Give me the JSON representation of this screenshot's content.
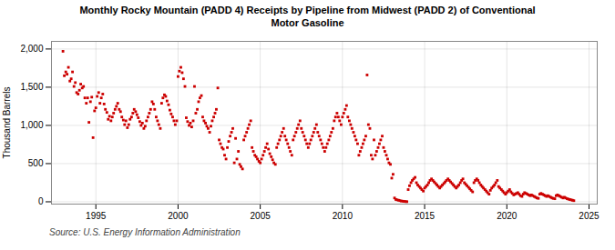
{
  "chart_data": {
    "type": "scatter",
    "title": "Monthly Rocky Mountain (PADD 4) Receipts by Pipeline from Midwest (PADD 2) of Conventional\nMotor Gasoline",
    "ylabel": "Thousand Barrels",
    "source": "Source: U.S. Energy Information Administration",
    "color": "#cc0000",
    "marker": "square",
    "grid": true,
    "xlim": [
      1992.3,
      2025.5
    ],
    "ylim": [
      -30,
      2100
    ],
    "xticks": [
      1995,
      2000,
      2005,
      2010,
      2015,
      2020,
      2025
    ],
    "yticks": [
      0,
      500,
      {
        "value": 1000,
        "label": "1,000"
      },
      {
        "value": 1500,
        "label": "1,500"
      },
      {
        "value": 2000,
        "label": "2,000"
      }
    ],
    "x": [
      1993,
      1993.08,
      1993.17,
      1993.25,
      1993.33,
      1993.42,
      1993.5,
      1993.58,
      1993.67,
      1993.75,
      1993.83,
      1993.92,
      1994,
      1994.08,
      1994.17,
      1994.25,
      1994.33,
      1994.42,
      1994.5,
      1994.58,
      1994.67,
      1994.75,
      1994.83,
      1994.92,
      1995,
      1995.08,
      1995.17,
      1995.25,
      1995.33,
      1995.42,
      1995.5,
      1995.58,
      1995.67,
      1995.75,
      1995.83,
      1995.92,
      1996,
      1996.08,
      1996.17,
      1996.25,
      1996.33,
      1996.42,
      1996.5,
      1996.58,
      1996.67,
      1996.75,
      1996.83,
      1996.92,
      1997,
      1997.08,
      1997.17,
      1997.25,
      1997.33,
      1997.42,
      1997.5,
      1997.58,
      1997.67,
      1997.75,
      1997.83,
      1997.92,
      1998,
      1998.08,
      1998.17,
      1998.25,
      1998.33,
      1998.42,
      1998.5,
      1998.58,
      1998.67,
      1998.75,
      1998.83,
      1998.92,
      1999,
      1999.08,
      1999.17,
      1999.25,
      1999.33,
      1999.42,
      1999.5,
      1999.58,
      1999.67,
      1999.75,
      1999.83,
      1999.92,
      2000,
      2000.08,
      2000.17,
      2000.25,
      2000.33,
      2000.42,
      2000.5,
      2000.58,
      2000.67,
      2000.75,
      2000.83,
      2000.92,
      2001,
      2001.08,
      2001.17,
      2001.25,
      2001.33,
      2001.42,
      2001.5,
      2001.58,
      2001.67,
      2001.75,
      2001.83,
      2001.92,
      2002,
      2002.08,
      2002.17,
      2002.25,
      2002.33,
      2002.42,
      2002.5,
      2002.58,
      2002.67,
      2002.75,
      2002.83,
      2002.92,
      2003,
      2003.08,
      2003.17,
      2003.25,
      2003.33,
      2003.42,
      2003.5,
      2003.58,
      2003.67,
      2003.75,
      2003.83,
      2003.92,
      2004,
      2004.08,
      2004.17,
      2004.25,
      2004.33,
      2004.42,
      2004.5,
      2004.58,
      2004.67,
      2004.75,
      2004.83,
      2004.92,
      2005,
      2005.08,
      2005.17,
      2005.25,
      2005.33,
      2005.42,
      2005.5,
      2005.58,
      2005.67,
      2005.75,
      2005.83,
      2005.92,
      2006,
      2006.08,
      2006.17,
      2006.25,
      2006.33,
      2006.42,
      2006.5,
      2006.58,
      2006.67,
      2006.75,
      2006.83,
      2006.92,
      2007,
      2007.08,
      2007.17,
      2007.25,
      2007.33,
      2007.42,
      2007.5,
      2007.58,
      2007.67,
      2007.75,
      2007.83,
      2007.92,
      2008,
      2008.08,
      2008.17,
      2008.25,
      2008.33,
      2008.42,
      2008.5,
      2008.58,
      2008.67,
      2008.75,
      2008.83,
      2008.92,
      2009,
      2009.08,
      2009.17,
      2009.25,
      2009.33,
      2009.42,
      2009.5,
      2009.58,
      2009.67,
      2009.75,
      2009.83,
      2009.92,
      2010,
      2010.08,
      2010.17,
      2010.25,
      2010.33,
      2010.42,
      2010.5,
      2010.58,
      2010.67,
      2010.75,
      2010.83,
      2010.92,
      2011,
      2011.08,
      2011.17,
      2011.25,
      2011.33,
      2011.42,
      2011.5,
      2011.58,
      2011.67,
      2011.75,
      2011.83,
      2011.92,
      2012,
      2012.08,
      2012.17,
      2012.25,
      2012.33,
      2012.42,
      2012.5,
      2012.58,
      2012.67,
      2012.75,
      2012.83,
      2012.92,
      2013,
      2013.08,
      2013.17,
      2013.25,
      2013.33,
      2013.42,
      2013.5,
      2013.58,
      2013.67,
      2013.75,
      2013.83,
      2013.92,
      2014,
      2014.08,
      2014.17,
      2014.25,
      2014.33,
      2014.42,
      2014.5,
      2014.58,
      2014.67,
      2014.75,
      2014.83,
      2014.92,
      2015,
      2015.08,
      2015.17,
      2015.25,
      2015.33,
      2015.42,
      2015.5,
      2015.58,
      2015.67,
      2015.75,
      2015.83,
      2015.92,
      2016,
      2016.08,
      2016.17,
      2016.25,
      2016.33,
      2016.42,
      2016.5,
      2016.58,
      2016.67,
      2016.75,
      2016.83,
      2016.92,
      2017,
      2017.08,
      2017.17,
      2017.25,
      2017.33,
      2017.42,
      2017.5,
      2017.58,
      2017.67,
      2017.75,
      2017.83,
      2017.92,
      2018,
      2018.08,
      2018.17,
      2018.25,
      2018.33,
      2018.42,
      2018.5,
      2018.58,
      2018.67,
      2018.75,
      2018.83,
      2018.92,
      2019,
      2019.08,
      2019.17,
      2019.25,
      2019.33,
      2019.42,
      2019.5,
      2019.58,
      2019.67,
      2019.75,
      2019.83,
      2019.92,
      2020,
      2020.08,
      2020.17,
      2020.25,
      2020.33,
      2020.42,
      2020.5,
      2020.58,
      2020.67,
      2020.75,
      2020.83,
      2020.92,
      2021,
      2021.08,
      2021.17,
      2021.25,
      2021.33,
      2021.42,
      2021.5,
      2021.58,
      2021.67,
      2021.75,
      2021.83,
      2021.92,
      2022,
      2022.08,
      2022.17,
      2022.25,
      2022.33,
      2022.42,
      2022.5,
      2022.58,
      2022.67,
      2022.75,
      2022.83,
      2022.92,
      2023,
      2023.08,
      2023.17,
      2023.25,
      2023.33,
      2023.42,
      2023.5,
      2023.58,
      2023.67,
      2023.75,
      2023.83,
      2023.92,
      2024,
      2024.08
    ],
    "values": [
      1970,
      1650,
      1700,
      1670,
      1760,
      1580,
      1610,
      1700,
      1510,
      1560,
      1430,
      1410,
      1460,
      1540,
      1490,
      1510,
      1360,
      1290,
      1360,
      1040,
      1310,
      1370,
      840,
      1190,
      1230,
      1380,
      1430,
      1290,
      1360,
      1410,
      1280,
      1210,
      1170,
      1080,
      1120,
      1060,
      1110,
      1160,
      1210,
      1250,
      1290,
      1210,
      1180,
      1110,
      1070,
      1010,
      1060,
      970,
      1010,
      1080,
      1110,
      1160,
      1210,
      1180,
      1140,
      1100,
      1050,
      1000,
      1030,
      960,
      990,
      1060,
      1110,
      1160,
      1210,
      1310,
      1280,
      1210,
      1110,
      1060,
      1010,
      960,
      1290,
      1360,
      1400,
      1380,
      1320,
      1270,
      1200,
      1150,
      1110,
      1060,
      1010,
      1060,
      1640,
      1710,
      1760,
      1690,
      1610,
      1510,
      1100,
      1050,
      1000,
      1030,
      980,
      1060,
      1510,
      1160,
      1210,
      1310,
      1360,
      1390,
      1110,
      1060,
      1030,
      990,
      960,
      910,
      990,
      1060,
      1110,
      1160,
      1210,
      1490,
      810,
      760,
      710,
      690,
      610,
      560,
      710,
      790,
      860,
      910,
      960,
      510,
      830,
      560,
      660,
      490,
      460,
      430,
      810,
      860,
      910,
      960,
      1010,
      1060,
      710,
      660,
      610,
      590,
      560,
      530,
      510,
      560,
      610,
      660,
      710,
      760,
      690,
      630,
      590,
      550,
      510,
      490,
      710,
      760,
      810,
      860,
      910,
      960,
      860,
      810,
      760,
      710,
      660,
      610,
      810,
      860,
      910,
      960,
      1010,
      1060,
      960,
      910,
      860,
      810,
      760,
      710,
      760,
      810,
      860,
      910,
      960,
      1010,
      910,
      860,
      810,
      760,
      710,
      660,
      710,
      760,
      810,
      860,
      910,
      960,
      1060,
      1110,
      1160,
      1110,
      1060,
      1010,
      1110,
      1160,
      1210,
      1260,
      1110,
      1060,
      1010,
      960,
      910,
      860,
      810,
      760,
      610,
      660,
      710,
      760,
      810,
      860,
      1660,
      1010,
      960,
      610,
      560,
      810,
      610,
      660,
      710,
      760,
      810,
      860,
      710,
      660,
      610,
      560,
      510,
      490,
      310,
      360,
      50,
      30,
      25,
      20,
      15,
      10,
      8,
      5,
      3,
      2,
      160,
      210,
      250,
      280,
      300,
      320,
      250,
      220,
      200,
      180,
      160,
      140,
      180,
      200,
      220,
      250,
      280,
      300,
      280,
      260,
      240,
      220,
      200,
      180,
      200,
      220,
      240,
      260,
      280,
      300,
      280,
      260,
      240,
      220,
      200,
      180,
      200,
      220,
      250,
      280,
      300,
      250,
      230,
      210,
      190,
      170,
      150,
      130,
      250,
      280,
      300,
      280,
      250,
      220,
      200,
      180,
      160,
      140,
      120,
      100,
      150,
      180,
      200,
      220,
      250,
      280,
      200,
      180,
      160,
      140,
      120,
      100,
      120,
      140,
      160,
      130,
      110,
      90,
      100,
      110,
      120,
      100,
      80,
      70,
      100,
      120,
      110,
      100,
      90,
      80,
      90,
      80,
      70,
      60,
      50,
      45,
      100,
      110,
      100,
      90,
      80,
      70,
      80,
      70,
      60,
      50,
      45,
      40,
      80,
      90,
      80,
      70,
      60,
      50,
      60,
      50,
      40,
      35,
      30,
      25,
      20,
      15
    ]
  }
}
